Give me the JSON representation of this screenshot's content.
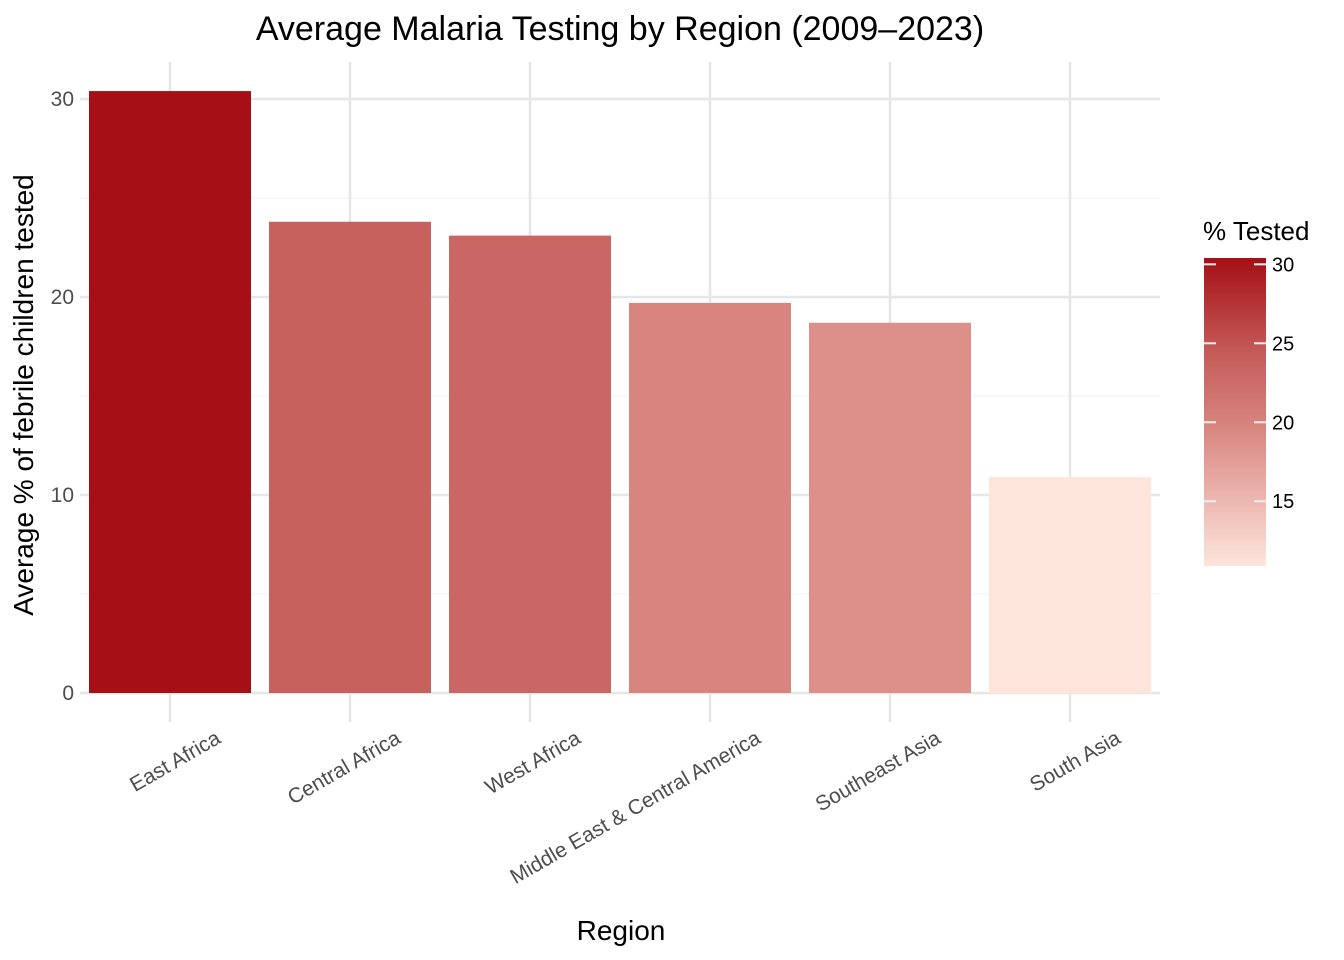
{
  "chart_data": {
    "type": "bar",
    "title": "Average Malaria Testing by Region (2009–2023)",
    "xlabel": "Region",
    "ylabel": "Average % of febrile children tested",
    "categories": [
      "East Africa",
      "Central Africa",
      "West Africa",
      "Middle East & Central America",
      "Southeast Asia",
      "South Asia"
    ],
    "values": [
      30.4,
      23.8,
      23.1,
      19.7,
      18.7,
      10.9
    ],
    "ylim": [
      0,
      32
    ],
    "yticks": [
      0,
      10,
      20,
      30
    ],
    "grid": true,
    "legend": {
      "title": "% Tested",
      "position": "right",
      "ticks": [
        15,
        20,
        25,
        30
      ],
      "range": [
        10.9,
        30.4
      ],
      "color_low": "#fde5dc",
      "color_high": "#a50f15"
    }
  }
}
